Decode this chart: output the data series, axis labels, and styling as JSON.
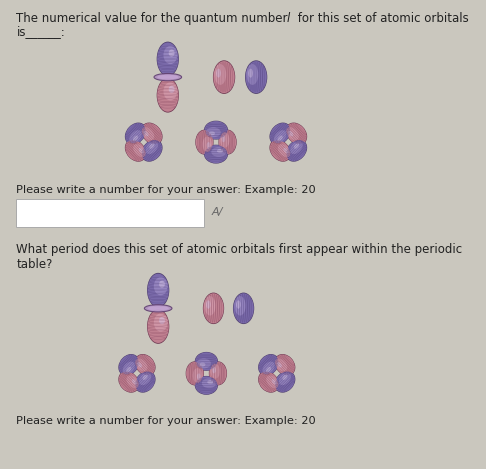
{
  "bg_color": "#cac7be",
  "panel1_bg": "#e2dfd7",
  "panel2_bg": "#e2dfd7",
  "title1_part1": "The numerical value for the quantum number ",
  "title1_italic": "l",
  "title1_part2": " for this set of atomic orbitals",
  "title1_line2": "is______:",
  "title2": "What period does this set of atomic orbitals first appear within the periodic table?",
  "answer_prompt": "Please write a number for your answer: Example: 20",
  "answer_box_color": "#ffffff",
  "text_color": "#222222",
  "font_size_title": 8.5,
  "font_size_prompt": 8.2,
  "figure_width": 4.86,
  "figure_height": 4.69,
  "dpi": 100,
  "orbital_base": "#7a6aaa",
  "orbital_pink": "#c08090",
  "orbital_highlight": "#a090c8",
  "orbital_dark": "#3a2860",
  "orbital_mid": "#9070b0"
}
